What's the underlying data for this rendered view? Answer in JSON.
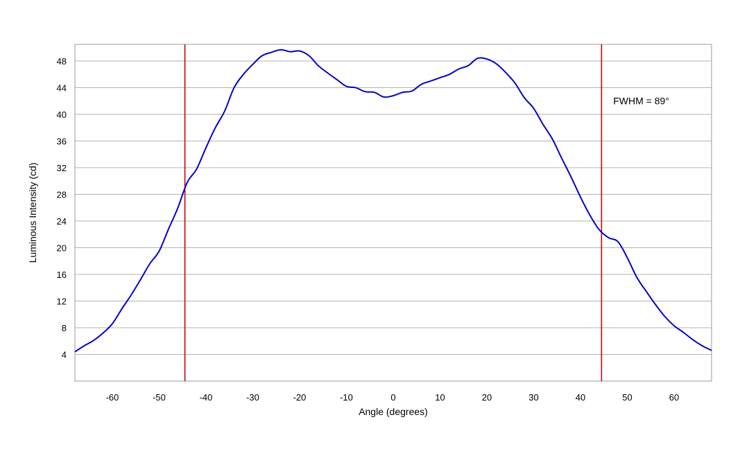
{
  "chart_data": {
    "type": "line",
    "xlabel": "Angle (degrees)",
    "ylabel": "Luminous Intensity (cd)",
    "xlim": [
      -68,
      68
    ],
    "ylim": [
      0,
      50.5
    ],
    "x_ticks": [
      -60,
      -50,
      -40,
      -30,
      -20,
      -10,
      0,
      10,
      20,
      30,
      40,
      50,
      60
    ],
    "y_ticks": [
      4,
      8,
      12,
      16,
      20,
      24,
      28,
      32,
      36,
      40,
      44,
      48
    ],
    "grid": "horizontal",
    "series_color": "#0000cc",
    "marker_color": "#cc0000",
    "series": [
      {
        "x": [
          -68,
          -66,
          -64,
          -62,
          -60,
          -58,
          -56,
          -54,
          -52,
          -50,
          -48,
          -46,
          -44,
          -42,
          -40,
          -38,
          -36,
          -34,
          -32,
          -30,
          -28,
          -26,
          -24,
          -22,
          -20,
          -18,
          -16,
          -14,
          -12,
          -10,
          -8,
          -6,
          -4,
          -2,
          0,
          2,
          4,
          6,
          8,
          10,
          12,
          14,
          16,
          18,
          20,
          22,
          24,
          26,
          28,
          30,
          32,
          34,
          36,
          38,
          40,
          42,
          44,
          46,
          48,
          50,
          52,
          54,
          56,
          58,
          60,
          62,
          64,
          66,
          68
        ],
        "y": [
          4.4,
          5.3,
          6.1,
          7.2,
          8.6,
          10.8,
          12.9,
          15.2,
          17.6,
          19.5,
          22.8,
          26.0,
          29.8,
          31.8,
          35.0,
          38.0,
          40.5,
          44.0,
          46.0,
          47.5,
          48.8,
          49.3,
          49.7,
          49.4,
          49.5,
          48.8,
          47.3,
          46.2,
          45.2,
          44.2,
          44.0,
          43.4,
          43.3,
          42.6,
          42.8,
          43.3,
          43.5,
          44.5,
          45.0,
          45.5,
          46.0,
          46.8,
          47.3,
          48.4,
          48.3,
          47.6,
          46.3,
          44.7,
          42.5,
          40.9,
          38.5,
          36.3,
          33.4,
          30.6,
          27.6,
          24.9,
          22.7,
          21.5,
          20.9,
          18.5,
          15.6,
          13.5,
          11.5,
          9.7,
          8.3,
          7.3,
          6.2,
          5.3,
          4.6
        ]
      }
    ],
    "vertical_markers": [
      -44.5,
      44.5
    ],
    "annotations": [
      {
        "text": "FWHM = 89°",
        "x": 47,
        "y": 41.5
      }
    ]
  }
}
